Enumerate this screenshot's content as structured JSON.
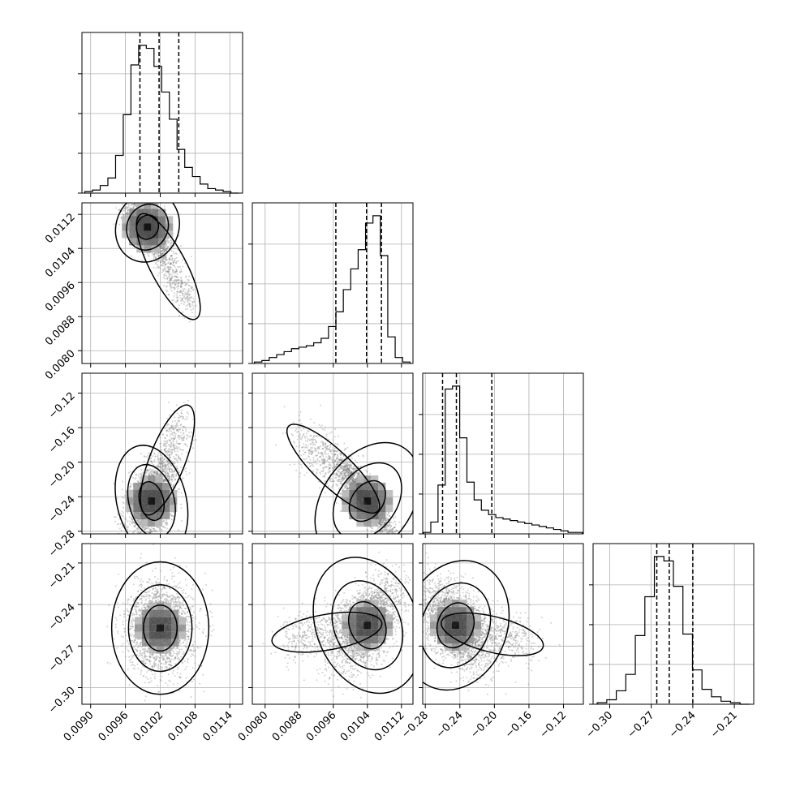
{
  "chart_data": {
    "type": "corner",
    "title": "",
    "parameters": [
      {
        "name": "",
        "range": [
          0.00885,
          0.01162
        ],
        "ticks": [
          "0.0090",
          "0.0096",
          "0.0102",
          "0.0108",
          "0.0114"
        ],
        "tick_values": [
          0.009,
          0.0096,
          0.0102,
          0.0108,
          0.0114
        ]
      },
      {
        "name": "",
        "range": [
          0.0077,
          0.01147
        ],
        "ticks": [
          "0.0080",
          "0.0088",
          "0.0096",
          "0.0104",
          "0.0112"
        ],
        "tick_values": [
          0.008,
          0.0088,
          0.0096,
          0.0104,
          0.0112
        ]
      },
      {
        "name": "",
        "range": [
          -0.283,
          -0.097
        ],
        "ticks": [
          "−0.28",
          "−0.24",
          "−0.20",
          "−0.16",
          "−0.12"
        ],
        "tick_values": [
          -0.28,
          -0.24,
          -0.2,
          -0.16,
          -0.12
        ]
      },
      {
        "name": "",
        "range": [
          -0.312,
          -0.196
        ],
        "ticks": [
          "−0.30",
          "−0.27",
          "−0.24",
          "−0.21"
        ],
        "tick_values": [
          -0.3,
          -0.27,
          -0.24,
          -0.21
        ]
      }
    ],
    "histograms": [
      {
        "param": 0,
        "edges_range": [
          0.0089,
          0.01155
        ],
        "counts": [
          1,
          2,
          5,
          10,
          25,
          52,
          85,
          98,
          96,
          84,
          67,
          49,
          29,
          17,
          11,
          6,
          3,
          2,
          1,
          0
        ],
        "quantiles": [
          0.00985,
          0.01018,
          0.01052
        ]
      },
      {
        "param": 1,
        "edges_range": [
          0.00775,
          0.0114
        ],
        "counts": [
          1,
          2,
          4,
          6,
          8,
          10,
          11,
          12,
          14,
          17,
          25,
          35,
          50,
          64,
          77,
          95,
          100,
          73,
          18,
          4,
          1
        ],
        "quantiles": [
          0.00966,
          0.01038,
          0.01073
        ]
      },
      {
        "param": 2,
        "edges_range": [
          -0.282,
          -0.098
        ],
        "counts": [
          1,
          8,
          33,
          98,
          100,
          65,
          35,
          23,
          16,
          13,
          11,
          10,
          9,
          8,
          7,
          6,
          5,
          4,
          3,
          2,
          1,
          1
        ],
        "quantiles": [
          -0.26,
          -0.244,
          -0.203
        ]
      },
      {
        "param": 3,
        "edges_range": [
          -0.309,
          -0.199
        ],
        "counts": [
          1,
          3,
          9,
          20,
          46,
          72,
          99,
          96,
          79,
          47,
          23,
          10,
          5,
          2,
          1,
          0
        ],
        "quantiles": [
          -0.266,
          -0.257,
          -0.24
        ]
      }
    ],
    "pairs": [
      {
        "x_param": 0,
        "y_param": 1,
        "center": [
          0.00998,
          0.0109
        ],
        "sx": 0.00018,
        "sy": 0.00028,
        "rho": -0.6,
        "tail": [
          0.0107,
          0.00905
        ]
      },
      {
        "x_param": 0,
        "y_param": 2,
        "center": [
          0.01005,
          -0.245
        ],
        "sx": 0.0002,
        "sy": 0.022,
        "rho": 0.35,
        "tail": [
          0.0106,
          -0.15
        ]
      },
      {
        "x_param": 0,
        "y_param": 3,
        "center": [
          0.0102,
          -0.257
        ],
        "sx": 0.00028,
        "sy": 0.016,
        "rho": 0.0,
        "tail": null
      },
      {
        "x_param": 1,
        "y_param": 2,
        "center": [
          0.0104,
          -0.245
        ],
        "sx": 0.00035,
        "sy": 0.025,
        "rho": -0.9,
        "tail": [
          0.0088,
          -0.17
        ]
      },
      {
        "x_param": 1,
        "y_param": 3,
        "center": [
          0.0104,
          -0.255
        ],
        "sx": 0.0004,
        "sy": 0.017,
        "rho": 0.55,
        "tail": [
          0.0085,
          -0.265
        ]
      },
      {
        "x_param": 2,
        "y_param": 3,
        "center": [
          -0.245,
          -0.255
        ],
        "sx": 0.02,
        "sy": 0.016,
        "rho": -0.5,
        "tail": [
          -0.16,
          -0.268
        ]
      }
    ],
    "grid": true,
    "legend": "none",
    "colors": {
      "hist": "#000000",
      "contour": "#000000",
      "points": "#7f7f7f",
      "grid": "#b0b0b0",
      "density_max": "#000000"
    }
  }
}
